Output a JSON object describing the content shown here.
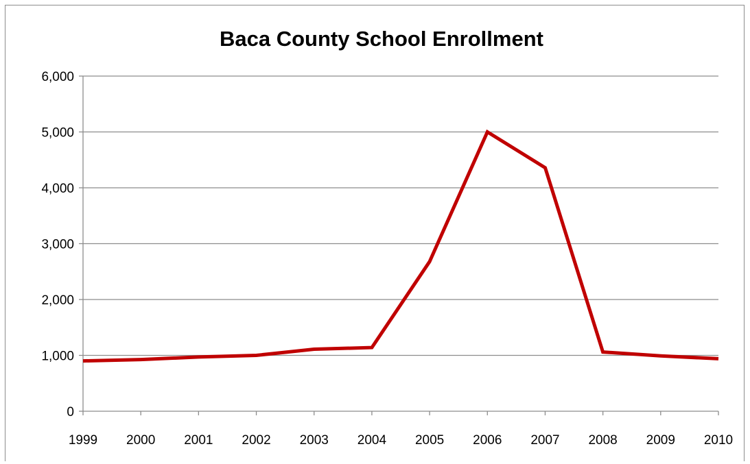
{
  "chart_data": {
    "type": "line",
    "title": "Baca County School Enrollment",
    "xlabel": "",
    "ylabel": "",
    "categories": [
      "1999",
      "2000",
      "2001",
      "2002",
      "2003",
      "2004",
      "2005",
      "2006",
      "2007",
      "2008",
      "2009",
      "2010"
    ],
    "series": [
      {
        "values": [
          900,
          925,
          970,
          1000,
          1110,
          1140,
          2680,
          5000,
          4360,
          1060,
          990,
          940
        ],
        "color": "#c00000"
      }
    ],
    "ylim": [
      0,
      6000
    ],
    "yticks": [
      0,
      1000,
      2000,
      3000,
      4000,
      5000,
      6000
    ],
    "ytick_labels": [
      "0",
      "1,000",
      "2,000",
      "3,000",
      "4,000",
      "5,000",
      "6,000"
    ],
    "grid": true,
    "legend": "none"
  }
}
